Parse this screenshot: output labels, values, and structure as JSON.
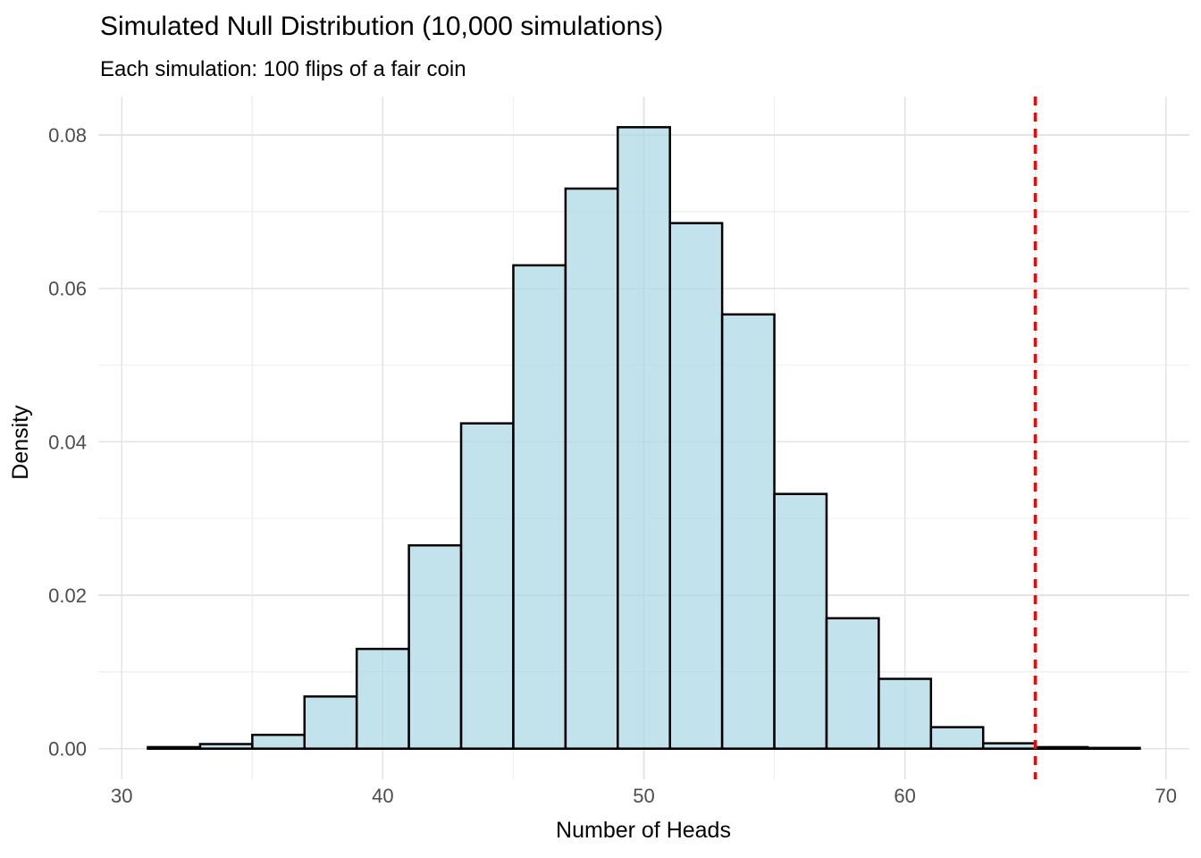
{
  "chart_data": {
    "type": "bar",
    "subtype": "histogram",
    "title": "Simulated Null Distribution (10,000 simulations)",
    "subtitle": "Each simulation: 100 flips of a fair coin",
    "xlabel": "Number of Heads",
    "ylabel": "Density",
    "x_tick_labels": [
      "30",
      "40",
      "50",
      "60",
      "70"
    ],
    "x_tick_values": [
      30,
      40,
      50,
      60,
      70
    ],
    "y_tick_labels": [
      "0.00",
      "0.02",
      "0.04",
      "0.06",
      "0.08"
    ],
    "y_tick_values": [
      0.0,
      0.02,
      0.04,
      0.06,
      0.08
    ],
    "x_minor_gridlines": [
      35,
      45,
      55,
      65
    ],
    "y_minor_gridlines": [
      0.01,
      0.03,
      0.05,
      0.07
    ],
    "xlim": [
      29.1,
      70.9
    ],
    "ylim": [
      -0.004,
      0.085
    ],
    "bin_width": 2,
    "bins": [
      {
        "x0": 31,
        "x1": 33,
        "density": 0.0002
      },
      {
        "x0": 33,
        "x1": 35,
        "density": 0.0006
      },
      {
        "x0": 35,
        "x1": 37,
        "density": 0.0018
      },
      {
        "x0": 37,
        "x1": 39,
        "density": 0.0068
      },
      {
        "x0": 39,
        "x1": 41,
        "density": 0.013
      },
      {
        "x0": 41,
        "x1": 43,
        "density": 0.0265
      },
      {
        "x0": 43,
        "x1": 45,
        "density": 0.0424
      },
      {
        "x0": 45,
        "x1": 47,
        "density": 0.063
      },
      {
        "x0": 47,
        "x1": 49,
        "density": 0.073
      },
      {
        "x0": 49,
        "x1": 51,
        "density": 0.081
      },
      {
        "x0": 51,
        "x1": 53,
        "density": 0.0685
      },
      {
        "x0": 53,
        "x1": 55,
        "density": 0.0566
      },
      {
        "x0": 55,
        "x1": 57,
        "density": 0.0332
      },
      {
        "x0": 57,
        "x1": 59,
        "density": 0.017
      },
      {
        "x0": 59,
        "x1": 61,
        "density": 0.0091
      },
      {
        "x0": 61,
        "x1": 63,
        "density": 0.0028
      },
      {
        "x0": 63,
        "x1": 65,
        "density": 0.0007
      },
      {
        "x0": 65,
        "x1": 67,
        "density": 0.0002
      },
      {
        "x0": 67,
        "x1": 69,
        "density": 0.0001
      }
    ],
    "observed_line": {
      "x": 65,
      "style": "dashed",
      "color": "#ff0000"
    },
    "legend": "none",
    "grid": true,
    "colors": {
      "background": "#ffffff",
      "bar_fill": "#add8e6",
      "bar_fill_opacity": 0.75,
      "bar_stroke": "#000000",
      "grid_major": "#e4e4e4",
      "grid_minor": "#efefef",
      "tick_label": "#4d4d4d",
      "text": "#000000",
      "observed_line": "#ff0000"
    }
  }
}
